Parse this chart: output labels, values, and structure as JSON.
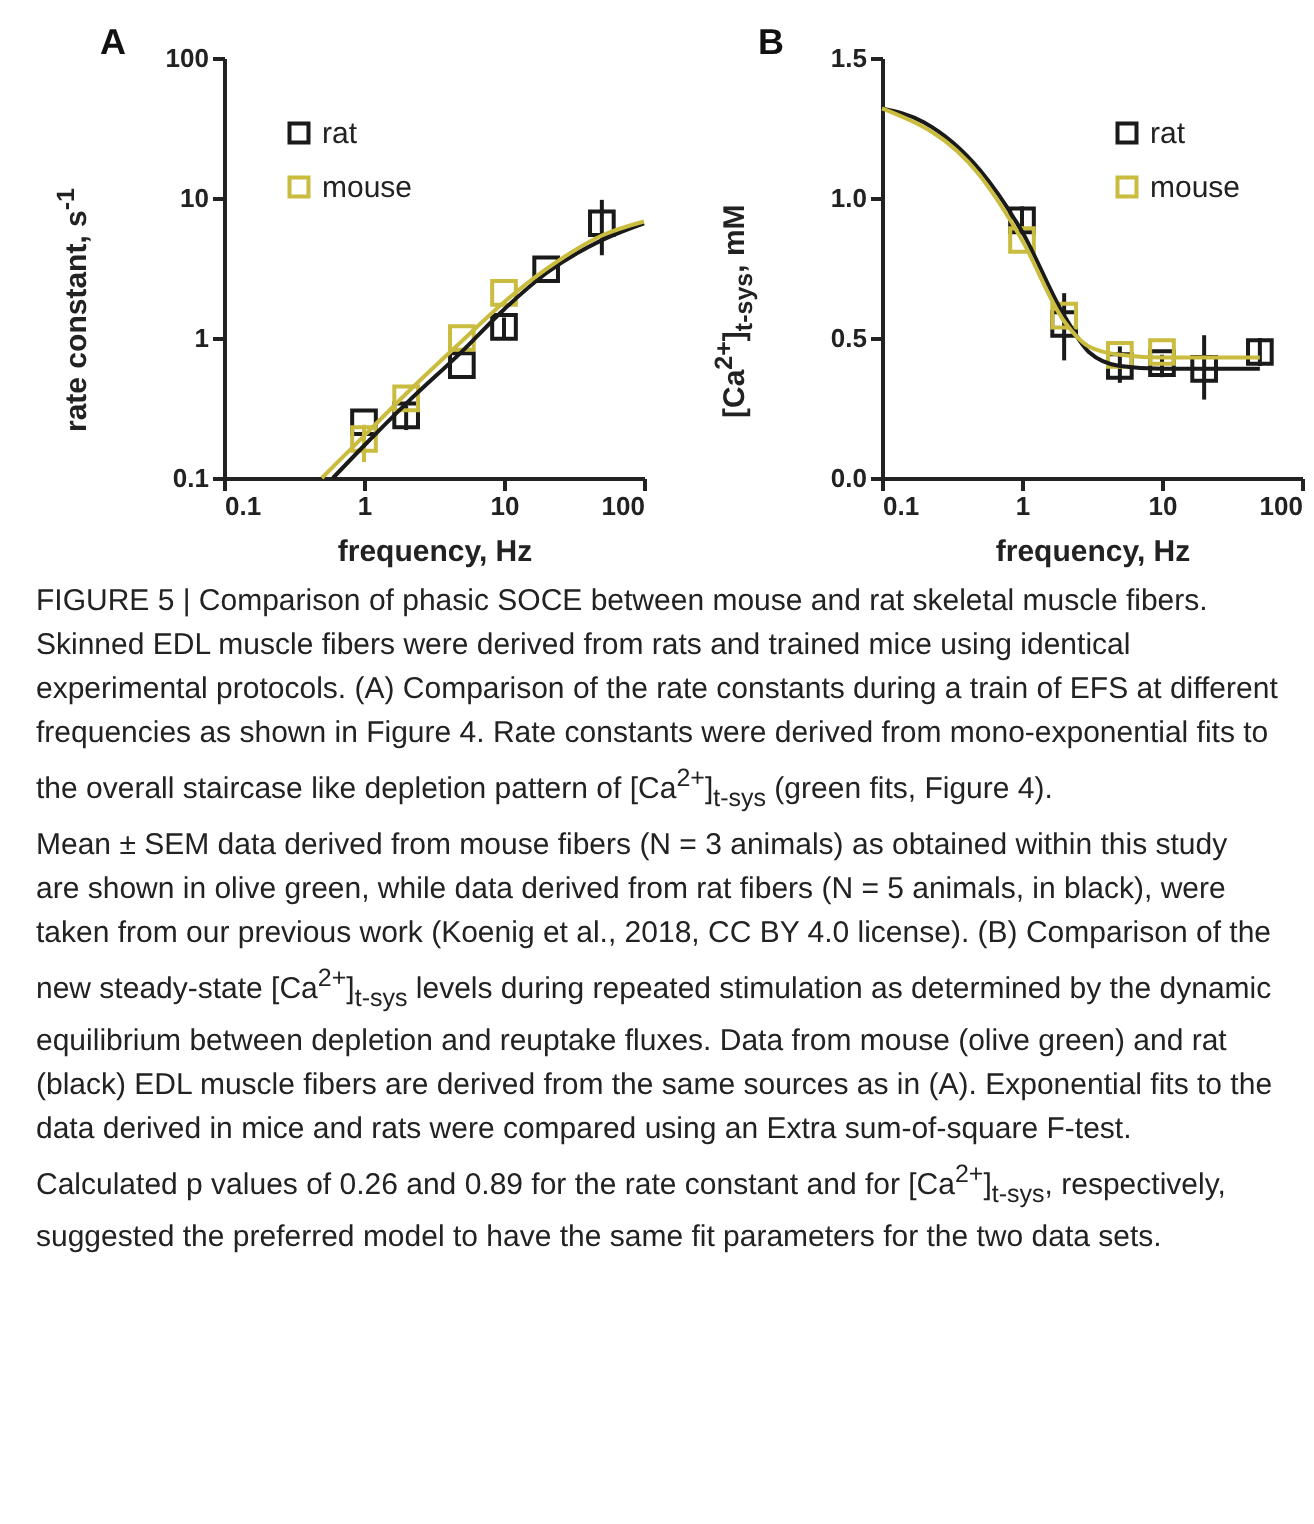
{
  "chart_data": [
    {
      "type": "scatter",
      "title": "A",
      "xlabel": "frequency, Hz",
      "ylabel": "rate constant, s$^{-1}$",
      "log": "xy",
      "xlim": [
        0.1,
        100
      ],
      "ylim": [
        0.1,
        100
      ],
      "xticks": [
        0.1,
        1,
        10,
        100
      ],
      "yticks": [
        0.1,
        1,
        10,
        100
      ],
      "legend": "top left",
      "grid": false,
      "series": [
        {
          "name": "rat",
          "type": "scatter",
          "marker": "square",
          "color": "#1a1a1a",
          "x": [
            1,
            2,
            5,
            10,
            20,
            50
          ],
          "values": [
            0.25,
            0.28,
            0.64,
            1.2,
            3.1,
            6.6
          ],
          "errors": [
            null,
            [
              0.22,
              0.33
            ],
            null,
            [
              1.0,
              1.4
            ],
            null,
            [
              3.9,
              9.7
            ]
          ]
        },
        {
          "name": "mouse",
          "type": "scatter",
          "marker": "square",
          "color": "#c9bc3f",
          "x": [
            1,
            2,
            5,
            10
          ],
          "values": [
            0.19,
            0.37,
            1.0,
            2.1
          ],
          "errors": [
            [
              0.13,
              0.24
            ],
            null,
            null,
            null
          ]
        },
        {
          "type": "line",
          "line_style": "solid",
          "marker": "none",
          "color": "#1a1a1a",
          "x": [
            0.6,
            1,
            2,
            5,
            10,
            20,
            50,
            100
          ],
          "values": [
            0.1,
            0.17,
            0.34,
            0.8,
            1.6,
            2.9,
            5.0,
            6.6
          ]
        },
        {
          "type": "line",
          "line_style": "solid",
          "marker": "none",
          "color": "#c9bc3f",
          "x": [
            0.5,
            1,
            2,
            5,
            10,
            20,
            50,
            100
          ],
          "values": [
            0.1,
            0.2,
            0.4,
            0.95,
            1.8,
            3.1,
            5.4,
            6.8
          ]
        }
      ]
    },
    {
      "type": "scatter",
      "title": "B",
      "xlabel": "frequency, Hz",
      "ylabel": "[Ca$^{2+}$]$_{t-sys}$, mM",
      "log": "x",
      "xlim": [
        0.1,
        100
      ],
      "ylim": [
        0,
        1.5
      ],
      "xticks": [
        0.1,
        1,
        10,
        100
      ],
      "yticks": [
        {
          "value": 0,
          "label": "0.0"
        },
        {
          "value": 0.5,
          "label": "0.5"
        },
        {
          "value": 1,
          "label": "1.0"
        },
        {
          "value": 1.5,
          "label": "1.5"
        }
      ],
      "legend": "top right",
      "grid": false,
      "series": [
        {
          "name": "rat",
          "type": "scatter",
          "marker": "square",
          "color": "#1a1a1a",
          "x": [
            1,
            2,
            5,
            10,
            20,
            50
          ],
          "values": [
            0.92,
            0.55,
            0.4,
            0.41,
            0.39,
            0.45
          ],
          "errors": [
            [
              0.87,
              0.97
            ],
            [
              0.42,
              0.66
            ],
            [
              0.34,
              0.47
            ],
            [
              0.36,
              0.44
            ],
            [
              0.28,
              0.51
            ],
            [
              0.4,
              0.5
            ]
          ]
        },
        {
          "name": "mouse",
          "type": "scatter",
          "marker": "square",
          "color": "#c9bc3f",
          "x": [
            1,
            2,
            5,
            10
          ],
          "values": [
            0.85,
            0.58,
            0.44,
            0.45
          ]
        },
        {
          "type": "line",
          "line_style": "solid",
          "marker": "none",
          "color": "#1a1a1a",
          "x": [
            0.1,
            0.2,
            0.5,
            1,
            2,
            3,
            5,
            10,
            50
          ],
          "values": [
            1.32,
            1.27,
            1.1,
            0.88,
            0.58,
            0.45,
            0.4,
            0.39,
            0.39
          ]
        },
        {
          "type": "line",
          "line_style": "solid",
          "marker": "none",
          "color": "#c9bc3f",
          "x": [
            0.1,
            0.5,
            1,
            2,
            3,
            5,
            10,
            50
          ],
          "values": [
            1.32,
            1.08,
            0.85,
            0.56,
            0.47,
            0.44,
            0.43,
            0.43
          ]
        }
      ]
    },
    {
      "type": "other",
      "annotations": [
        "FIGURE 5 | Comparison of phasic SOCE between mouse and rat skeletal muscle fibers. Skinned EDL muscle fibers were derived from rats and trained mice using identical experimental protocols. (A) Comparison of the rate constants during a train of EFS at different frequencies as shown in Figure 4. Rate constants were derived from mono-exponential fits to the overall staircase like depletion pattern of [Ca$^{2+}$]$_{t-sys}$ (green fits, Figure 4).",
        "Mean ± SEM data derived from mouse fibers (N = 3 animals) as obtained within this study are shown in olive green, while data derived from rat fibers (N = 5 animals, in black), were taken from our previous work (Koenig et al., 2018, CC BY 4.0 license). (B) Comparison of the new steady-state [Ca$^{2+}$]$_{t-sys}$ levels during repeated stimulation as determined by the dynamic equilibrium between depletion and reuptake fluxes. Data from mouse (olive green) and rat (black) EDL muscle fibers are derived from the same sources as in (A). Exponential fits to the data derived in mice and rats were compared using an Extra sum-of-square F-test. Calculated p values of 0.26 and 0.89 for the rate constant and for [Ca$^{2+}$]$_{t-sys}$, respectively, suggested the preferred model to have the same fit parameters for the two data sets."
      ]
    }
  ]
}
